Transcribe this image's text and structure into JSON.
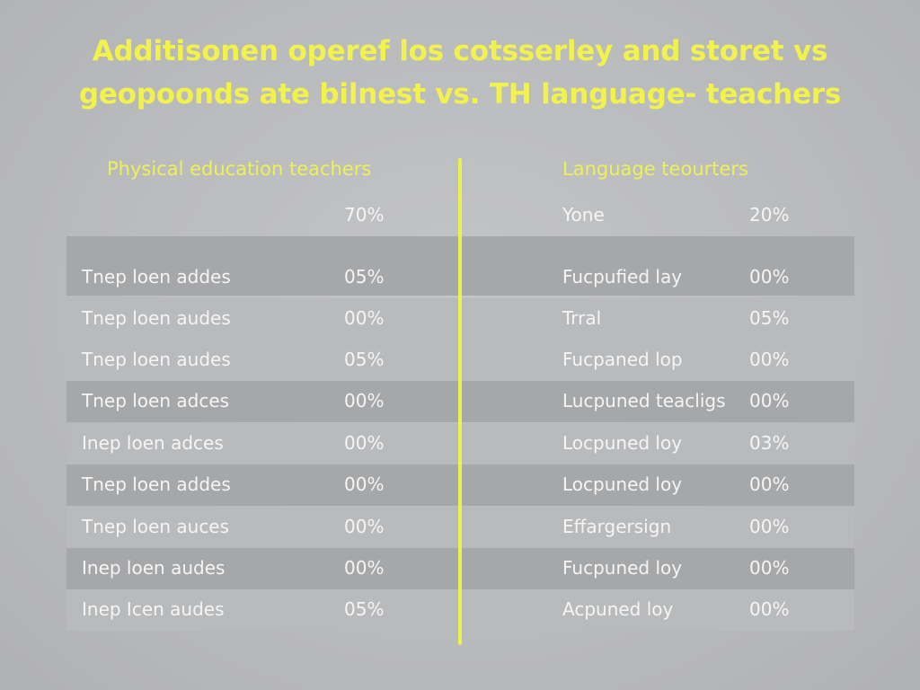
{
  "title": {
    "line1": "Additisonen operef los cotsserley and storet vs",
    "line2": "geopoonds ate bilnest vs. TH language- teachers"
  },
  "chart_data": {
    "type": "table",
    "columns": [
      {
        "header": "Physical education teachers",
        "rows": [
          {
            "label": "",
            "value": "70%"
          },
          {
            "label": "Tnep loen addes",
            "value": "05%"
          },
          {
            "label": "Tnep loen audes",
            "value": "00%"
          },
          {
            "label": "Tnep loen audes",
            "value": "05%"
          },
          {
            "label": "Tnep loen adces",
            "value": "00%"
          },
          {
            "label": "Inep loen adces",
            "value": "00%"
          },
          {
            "label": "Tnep loen addes",
            "value": "00%"
          },
          {
            "label": "Tnep loen auces",
            "value": "00%"
          },
          {
            "label": "Inep loen audes",
            "value": "00%"
          },
          {
            "label": "Inep Icen audes",
            "value": "05%"
          }
        ]
      },
      {
        "header": "Language teourters",
        "rows": [
          {
            "label": "Yone",
            "value": "20%"
          },
          {
            "label": "Fucpufied lay",
            "value": "00%"
          },
          {
            "label": "Trral",
            "value": "05%"
          },
          {
            "label": "Fucpaned lop",
            "value": "00%"
          },
          {
            "label": "Lucpuned teacligs",
            "value": "00%"
          },
          {
            "label": "Locpuned loy",
            "value": "03%"
          },
          {
            "label": "Locpuned loy",
            "value": "00%"
          },
          {
            "label": "Effargersign",
            "value": "00%"
          },
          {
            "label": "Fucpuned loy",
            "value": "00%"
          },
          {
            "label": "Acpuned loy",
            "value": "00%"
          }
        ]
      }
    ]
  },
  "colors": {
    "accent": "#eef149",
    "background": "#bcbdbf",
    "row_dark": "#a6a7a9",
    "row_light": "#b9babc",
    "text": "#f5f5f5"
  }
}
